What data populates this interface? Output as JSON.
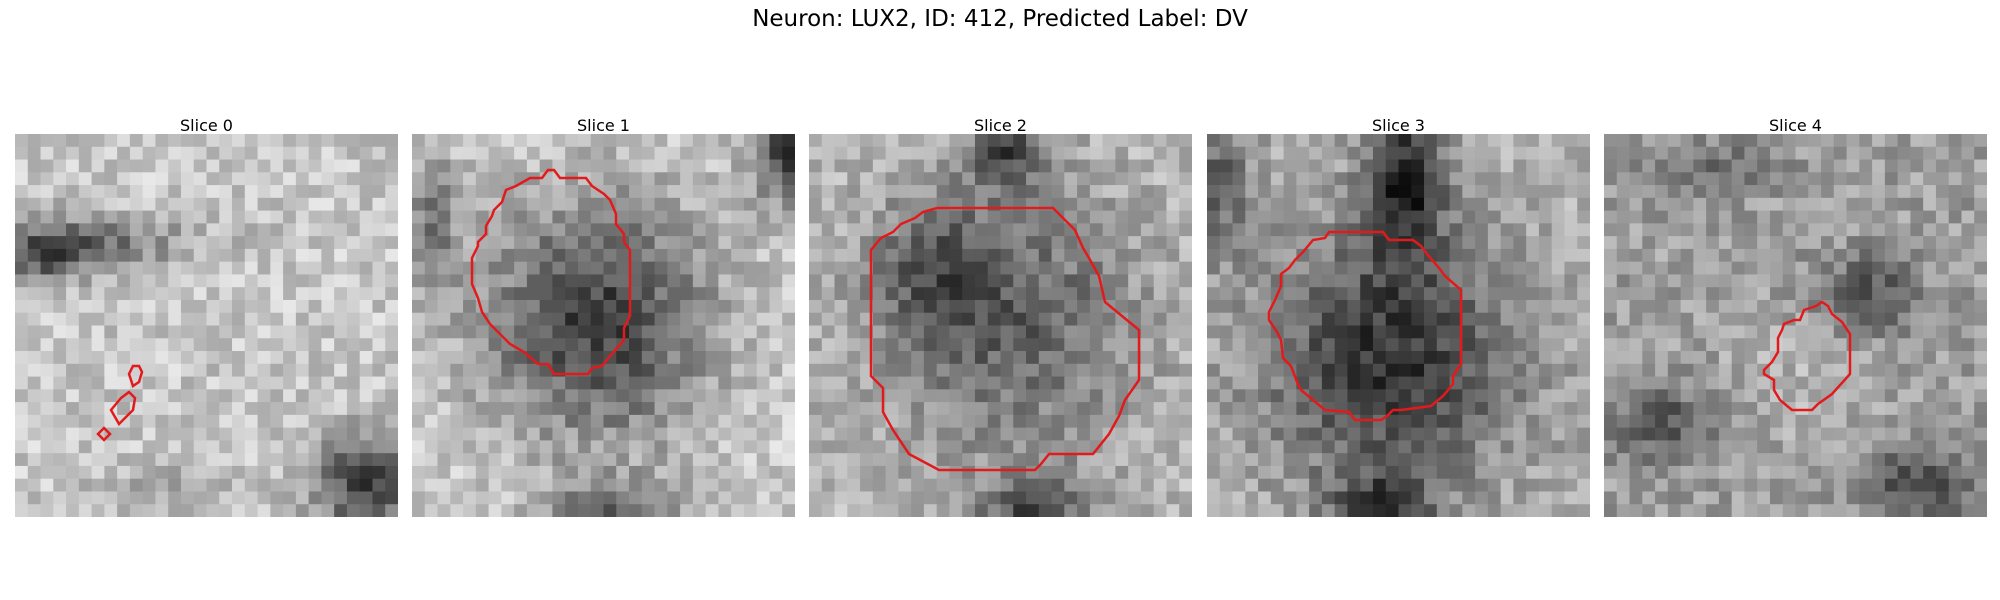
{
  "figure": {
    "suptitle": "Neuron: LUX2, ID: 412, Predicted Label: DV"
  },
  "colors": {
    "contour": "#e31a1c",
    "background": "#ffffff",
    "colormap": "grayscale"
  },
  "panels": [
    {
      "title": "Slice 0",
      "overall": "bright",
      "dark_regions": [
        "upper-left band",
        "bottom-right corner"
      ],
      "contour": "small fragments upper-left"
    },
    {
      "title": "Slice 1",
      "overall": "dark soma centered, bright surround",
      "dark_regions": [
        "center",
        "top-right corner",
        "bottom center"
      ],
      "contour": "large ring around soma"
    },
    {
      "title": "Slice 2",
      "overall": "medium-dark soma centered",
      "dark_regions": [
        "center",
        "top center",
        "bottom center"
      ],
      "contour": "large octagonal ring"
    },
    {
      "title": "Slice 3",
      "overall": "dark soma with dark stalk at top",
      "dark_regions": [
        "center",
        "top center stalk",
        "bottom center"
      ],
      "contour": "large ring slightly lower"
    },
    {
      "title": "Slice 4",
      "overall": "textured mid-gray",
      "dark_regions": [
        "left middle",
        "bottom right",
        "top right"
      ],
      "contour": "small ring center-right"
    }
  ]
}
